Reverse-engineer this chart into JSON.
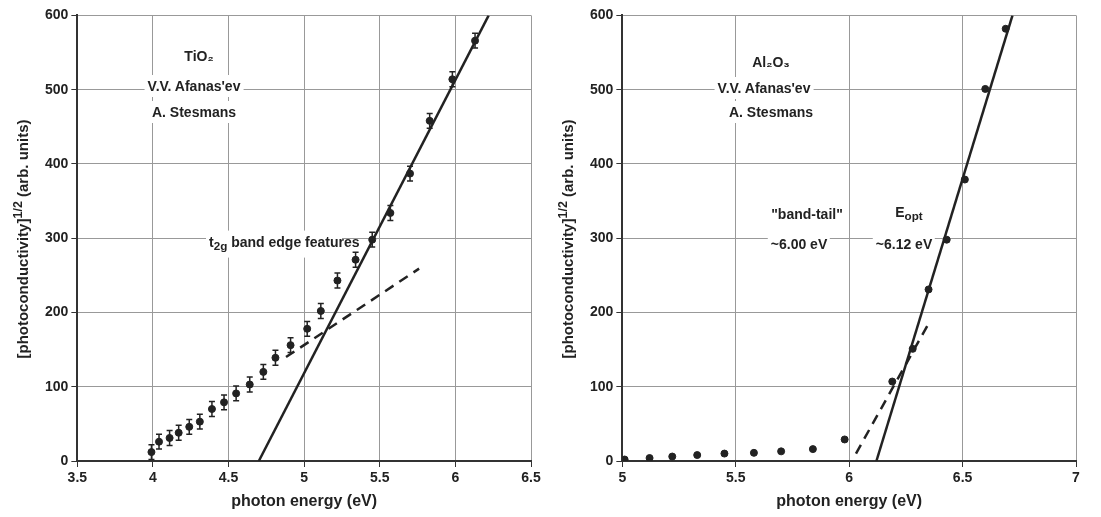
{
  "chart_data": [
    {
      "type": "scatter",
      "xlabel": "photon energy (eV)",
      "ylabel": "[photoconductivity]$^{1/2}$ (arb. units)",
      "xlim": [
        3.5,
        6.5
      ],
      "ylim": [
        0,
        600
      ],
      "xticks": [
        3.5,
        4,
        4.5,
        5,
        5.5,
        6,
        6.5
      ],
      "yticks": [
        0,
        100,
        200,
        300,
        400,
        500,
        600
      ],
      "grid": true,
      "annotations": [
        "TiO₂",
        "V.V. Afanas'ev",
        "A. Stesmans",
        "t$_{2g}$ band edge features"
      ],
      "series": [
        {
          "type": "scatter",
          "marker": "circle",
          "color": "#222222",
          "x": [
            3.99,
            4.04,
            4.11,
            4.17,
            4.24,
            4.31,
            4.39,
            4.47,
            4.55,
            4.64,
            4.73,
            4.81,
            4.91,
            5.02,
            5.11,
            5.22,
            5.34,
            5.45,
            5.57,
            5.7,
            5.83,
            5.98,
            6.13
          ],
          "values": [
            12,
            26,
            31,
            38,
            46,
            53,
            70,
            79,
            91,
            103,
            120,
            139,
            156,
            178,
            202,
            243,
            271,
            298,
            334,
            387,
            458,
            514,
            566
          ],
          "errors": [
            10,
            10,
            10,
            10,
            10,
            10,
            10,
            10,
            10,
            10,
            10,
            10,
            10,
            10,
            10,
            10,
            10,
            10,
            10,
            10,
            10,
            10,
            10
          ]
        },
        {
          "type": "line",
          "color": "#222222",
          "line_style": "solid",
          "x": [
            4.7,
            6.22
          ],
          "values": [
            0,
            600
          ]
        },
        {
          "type": "line",
          "color": "#222222",
          "line_style": "dashed",
          "x": [
            4.88,
            5.76
          ],
          "values": [
            140,
            259
          ]
        }
      ]
    },
    {
      "type": "scatter",
      "xlabel": "photon energy (eV)",
      "ylabel": "[photoconductivity]$^{1/2}$ (arb. units)",
      "xlim": [
        5,
        7
      ],
      "ylim": [
        0,
        600
      ],
      "xticks": [
        5,
        5.5,
        6,
        6.5,
        7
      ],
      "yticks": [
        0,
        100,
        200,
        300,
        400,
        500,
        600
      ],
      "grid": true,
      "annotations": [
        "Al₂O₃",
        "V.V. Afanas'ev",
        "A. Stesmans",
        "\"band-tail\"",
        "E$_{opt}$",
        "~6.00 eV",
        "~6.12 eV"
      ],
      "series": [
        {
          "type": "scatter",
          "marker": "circle",
          "color": "#222222",
          "x": [
            5.01,
            5.12,
            5.22,
            5.33,
            5.45,
            5.58,
            5.7,
            5.84,
            5.98,
            6.19,
            6.28,
            6.35,
            6.43,
            6.51,
            6.6,
            6.69
          ],
          "values": [
            2,
            4,
            6,
            8,
            10,
            11,
            13,
            16,
            29,
            107,
            151,
            231,
            298,
            379,
            501,
            582
          ]
        },
        {
          "type": "line",
          "color": "#222222",
          "line_style": "solid",
          "x": [
            6.12,
            6.72
          ],
          "values": [
            0,
            600
          ]
        },
        {
          "type": "line",
          "color": "#222222",
          "line_style": "dashed",
          "x": [
            6.03,
            6.35
          ],
          "values": [
            10,
            185
          ]
        }
      ]
    }
  ]
}
